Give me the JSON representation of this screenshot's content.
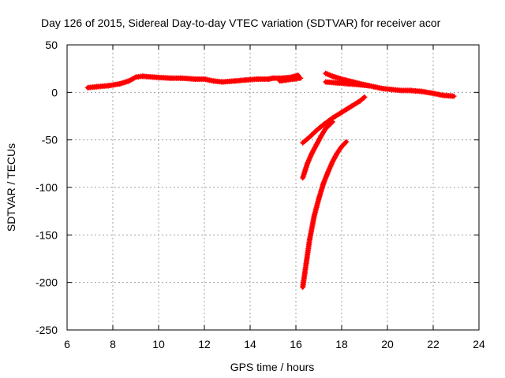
{
  "chart_data": {
    "type": "scatter",
    "title": "Day 126 of 2015, Sidereal Day-to-day VTEC variation (SDTVAR) for receiver acor",
    "xlabel": "GPS time / hours",
    "ylabel": "SDTVAR / TECUs",
    "xlim": [
      6,
      24
    ],
    "ylim": [
      -250,
      50
    ],
    "xticks": [
      6,
      8,
      10,
      12,
      14,
      16,
      18,
      20,
      22,
      24
    ],
    "yticks": [
      50,
      0,
      -50,
      -100,
      -150,
      -200,
      -250
    ],
    "grid": true,
    "marker": "plus",
    "color": "#ff0000",
    "series": [
      {
        "points": [
          [
            6.9,
            5
          ],
          [
            7.3,
            6
          ],
          [
            7.8,
            7
          ],
          [
            8.3,
            9
          ],
          [
            8.7,
            12
          ],
          [
            9.0,
            16
          ],
          [
            9.3,
            17
          ],
          [
            9.8,
            16
          ],
          [
            10.5,
            15
          ],
          [
            11.0,
            15
          ],
          [
            11.6,
            14
          ],
          [
            12.0,
            14
          ],
          [
            12.4,
            12
          ],
          [
            12.8,
            11
          ],
          [
            13.3,
            12
          ],
          [
            13.8,
            13
          ],
          [
            14.3,
            14
          ],
          [
            14.8,
            14
          ],
          [
            15.0,
            15
          ],
          [
            15.4,
            15
          ],
          [
            15.8,
            16
          ],
          [
            16.1,
            18
          ]
        ]
      },
      {
        "points": [
          [
            15.3,
            12
          ],
          [
            15.6,
            13
          ],
          [
            15.9,
            14
          ],
          [
            16.2,
            15
          ]
        ]
      },
      {
        "points": [
          [
            17.3,
            20
          ],
          [
            17.6,
            17
          ],
          [
            18.0,
            14
          ],
          [
            18.5,
            11
          ],
          [
            19.0,
            8
          ],
          [
            19.4,
            6
          ],
          [
            19.8,
            4
          ],
          [
            20.2,
            3
          ],
          [
            20.6,
            2
          ],
          [
            21.0,
            2
          ],
          [
            21.5,
            1
          ],
          [
            22.0,
            -1
          ],
          [
            22.4,
            -3
          ],
          [
            22.9,
            -4
          ]
        ]
      },
      {
        "points": [
          [
            17.3,
            11
          ],
          [
            17.8,
            10
          ],
          [
            18.3,
            9
          ],
          [
            18.8,
            8
          ],
          [
            19.2,
            7
          ]
        ]
      },
      {
        "points": [
          [
            16.3,
            -53
          ],
          [
            16.6,
            -47
          ],
          [
            16.9,
            -40
          ],
          [
            17.2,
            -34
          ],
          [
            17.6,
            -27
          ],
          [
            18.0,
            -21
          ],
          [
            18.4,
            -15
          ],
          [
            18.8,
            -9
          ],
          [
            19.0,
            -5
          ]
        ]
      },
      {
        "points": [
          [
            16.3,
            -90
          ],
          [
            16.5,
            -75
          ],
          [
            16.7,
            -64
          ],
          [
            16.9,
            -55
          ],
          [
            17.1,
            -46
          ],
          [
            17.3,
            -38
          ],
          [
            17.6,
            -31
          ]
        ]
      },
      {
        "points": [
          [
            16.3,
            -205
          ],
          [
            16.45,
            -180
          ],
          [
            16.6,
            -155
          ],
          [
            16.8,
            -130
          ],
          [
            17.0,
            -112
          ],
          [
            17.2,
            -96
          ],
          [
            17.4,
            -84
          ],
          [
            17.6,
            -73
          ],
          [
            17.8,
            -64
          ],
          [
            18.0,
            -57
          ],
          [
            18.2,
            -52
          ]
        ]
      }
    ]
  }
}
